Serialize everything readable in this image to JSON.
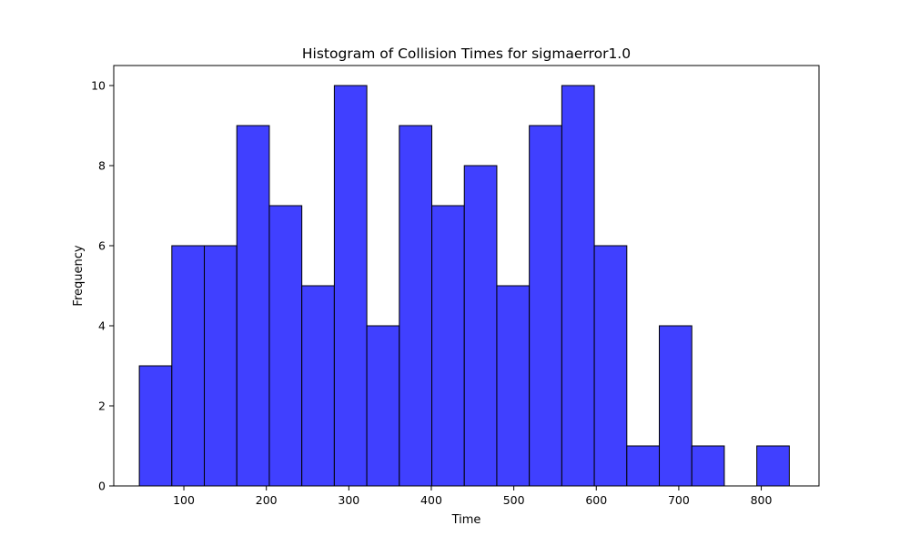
{
  "chart_data": {
    "type": "bar",
    "title": "Histogram of Collision Times for sigmaerror1.0",
    "xlabel": "Time",
    "ylabel": "Frequency",
    "xlim": [
      15,
      870
    ],
    "ylim": [
      0,
      10.5
    ],
    "xticks": [
      100,
      200,
      300,
      400,
      500,
      600,
      700,
      800
    ],
    "yticks": [
      0,
      2,
      4,
      6,
      8,
      10
    ],
    "bin_edges": [
      46,
      85.4,
      124.8,
      164.2,
      203.6,
      243,
      282.4,
      321.8,
      361.2,
      400.6,
      440,
      479.4,
      518.8,
      558.2,
      597.6,
      637,
      676.4,
      715.8,
      755.2,
      794.6,
      834
    ],
    "counts": [
      3,
      6,
      6,
      9,
      7,
      5,
      10,
      4,
      9,
      7,
      8,
      5,
      9,
      10,
      6,
      1,
      4,
      1,
      0,
      1
    ],
    "grid": false,
    "bar_color": "#4040ff",
    "edge_color": "#000000"
  }
}
